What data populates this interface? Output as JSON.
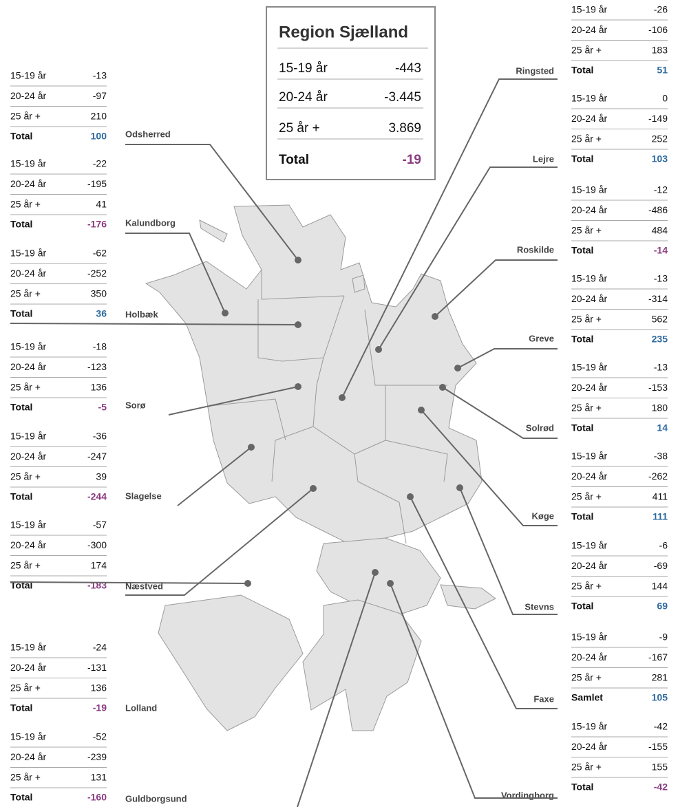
{
  "box": {
    "title": "Region Sjælland",
    "rows": [
      {
        "label": "15-19 år",
        "value": -443
      },
      {
        "label": "20-24 år",
        "value": "-3.445"
      },
      {
        "label": "25 år +",
        "value": "3.869"
      }
    ],
    "total": {
      "label": "Total",
      "value": -19
    }
  },
  "positive_color": "#2e6aa0",
  "negative_color": "#8a3a80",
  "regions": [
    {
      "name": "Odsherred",
      "rows": [
        {
          "label": "15-19 år",
          "value": -13
        },
        {
          "label": "20-24 år",
          "value": -97
        },
        {
          "label": "25 år +",
          "value": 210
        }
      ],
      "total": {
        "label": "Total",
        "value": 100
      }
    },
    {
      "name": "Kalundborg",
      "rows": [
        {
          "label": "15-19 år",
          "value": -22
        },
        {
          "label": "20-24 år",
          "value": -195
        },
        {
          "label": "25 år +",
          "value": 41
        }
      ],
      "total": {
        "label": "Total",
        "value": -176
      }
    },
    {
      "name": "Holbæk",
      "rows": [
        {
          "label": "15-19 år",
          "value": -62
        },
        {
          "label": "20-24 år",
          "value": -252
        },
        {
          "label": "25 år +",
          "value": 350
        }
      ],
      "total": {
        "label": "Total",
        "value": 36
      }
    },
    {
      "name": "Sorø",
      "rows": [
        {
          "label": "15-19 år",
          "value": -18
        },
        {
          "label": "20-24 år",
          "value": -123
        },
        {
          "label": "25 år +",
          "value": 136
        }
      ],
      "total": {
        "label": "Total",
        "value": -5
      }
    },
    {
      "name": "Slagelse",
      "rows": [
        {
          "label": "15-19 år",
          "value": -36
        },
        {
          "label": "20-24 år",
          "value": -247
        },
        {
          "label": "25 år +",
          "value": 39
        }
      ],
      "total": {
        "label": "Total",
        "value": -244
      }
    },
    {
      "name": "Næstved",
      "rows": [
        {
          "label": "15-19 år",
          "value": -57
        },
        {
          "label": "20-24 år",
          "value": -300
        },
        {
          "label": "25 år +",
          "value": 174
        }
      ],
      "total": {
        "label": "Total",
        "value": -183
      }
    },
    {
      "name": "Lolland",
      "rows": [
        {
          "label": "15-19 år",
          "value": -24
        },
        {
          "label": "20-24 år",
          "value": -131
        },
        {
          "label": "25 år +",
          "value": 136
        }
      ],
      "total": {
        "label": "Total",
        "value": -19
      }
    },
    {
      "name": "Guldborgsund",
      "rows": [
        {
          "label": "15-19 år",
          "value": -52
        },
        {
          "label": "20-24 år",
          "value": -239
        },
        {
          "label": "25 år +",
          "value": 131
        }
      ],
      "total": {
        "label": "Total",
        "value": -160
      }
    },
    {
      "name": "Ringsted",
      "rows": [
        {
          "label": "15-19 år",
          "value": -26
        },
        {
          "label": "20-24 år",
          "value": -106
        },
        {
          "label": "25 år +",
          "value": 183
        }
      ],
      "total": {
        "label": "Total",
        "value": 51
      }
    },
    {
      "name": "Lejre",
      "rows": [
        {
          "label": "15-19 år",
          "value": 0
        },
        {
          "label": "20-24 år",
          "value": -149
        },
        {
          "label": "25 år +",
          "value": 252
        }
      ],
      "total": {
        "label": "Total",
        "value": 103
      }
    },
    {
      "name": "Roskilde",
      "rows": [
        {
          "label": "15-19 år",
          "value": -12
        },
        {
          "label": "20-24 år",
          "value": -486
        },
        {
          "label": "25 år +",
          "value": 484
        }
      ],
      "total": {
        "label": "Total",
        "value": -14
      }
    },
    {
      "name": "Greve",
      "rows": [
        {
          "label": "15-19 år",
          "value": -13
        },
        {
          "label": "20-24 år",
          "value": -314
        },
        {
          "label": "25 år +",
          "value": 562
        }
      ],
      "total": {
        "label": "Total",
        "value": 235
      }
    },
    {
      "name": "Solrød",
      "rows": [
        {
          "label": "15-19 år",
          "value": -13
        },
        {
          "label": "20-24 år",
          "value": -153
        },
        {
          "label": "25 år +",
          "value": 180
        }
      ],
      "total": {
        "label": "Total",
        "value": 14
      }
    },
    {
      "name": "Køge",
      "rows": [
        {
          "label": "15-19 år",
          "value": -38
        },
        {
          "label": "20-24 år",
          "value": -262
        },
        {
          "label": "25 år +",
          "value": 411
        }
      ],
      "total": {
        "label": "Total",
        "value": 111
      }
    },
    {
      "name": "Stevns",
      "rows": [
        {
          "label": "15-19 år",
          "value": -6
        },
        {
          "label": "20-24 år",
          "value": -69
        },
        {
          "label": "25 år +",
          "value": 144
        }
      ],
      "total": {
        "label": "Total",
        "value": 69
      }
    },
    {
      "name": "Faxe",
      "rows": [
        {
          "label": "15-19 år",
          "value": -9
        },
        {
          "label": "20-24 år",
          "value": -167
        },
        {
          "label": "25 år +",
          "value": 281
        }
      ],
      "total": {
        "label": "Samlet",
        "value": 105
      }
    },
    {
      "name": "Vordingborg",
      "rows": [
        {
          "label": "15-19 år",
          "value": -42
        },
        {
          "label": "20-24 år",
          "value": -155
        },
        {
          "label": "25 år +",
          "value": 155
        }
      ],
      "total": {
        "label": "Total",
        "value": -42
      }
    }
  ]
}
